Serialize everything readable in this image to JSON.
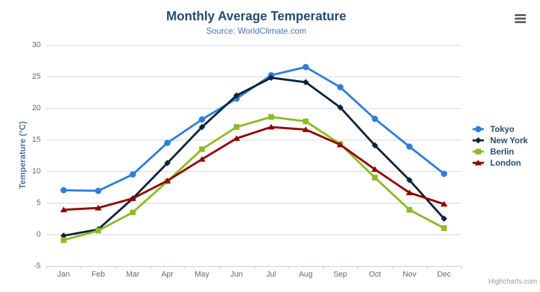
{
  "icons": {
    "context_menu": "hamburger-icon"
  },
  "credits_label": "Highcharts.com",
  "chart_data": {
    "type": "line",
    "title": "Monthly Average Temperature",
    "subtitle": "Source: WorldClimate.com",
    "xlabel": "",
    "ylabel": "Temperature (°C)",
    "categories": [
      "Jan",
      "Feb",
      "Mar",
      "Apr",
      "May",
      "Jun",
      "Jul",
      "Aug",
      "Sep",
      "Oct",
      "Nov",
      "Dec"
    ],
    "yticks": [
      -5,
      0,
      5,
      10,
      15,
      20,
      25,
      30
    ],
    "ylim": [
      -5,
      30
    ],
    "grid": true,
    "legend_position": "right",
    "series": [
      {
        "name": "Tokyo",
        "color": "#2f7ed8",
        "marker": "circle",
        "values": [
          7.0,
          6.9,
          9.5,
          14.5,
          18.2,
          21.5,
          25.2,
          26.5,
          23.3,
          18.3,
          13.9,
          9.6
        ]
      },
      {
        "name": "New York",
        "color": "#0d233a",
        "marker": "diamond",
        "values": [
          -0.2,
          0.8,
          5.7,
          11.3,
          17.0,
          22.0,
          24.8,
          24.1,
          20.1,
          14.1,
          8.6,
          2.5
        ]
      },
      {
        "name": "Berlin",
        "color": "#8bbc21",
        "marker": "square",
        "values": [
          -0.9,
          0.6,
          3.5,
          8.4,
          13.5,
          17.0,
          18.6,
          17.9,
          14.3,
          9.0,
          3.9,
          1.0
        ]
      },
      {
        "name": "London",
        "color": "#910000",
        "marker": "triangle",
        "values": [
          3.9,
          4.2,
          5.7,
          8.5,
          11.9,
          15.2,
          17.0,
          16.6,
          14.2,
          10.3,
          6.6,
          4.8
        ]
      }
    ],
    "colors": {
      "gridline": "#d8d8d8",
      "axis_line": "#c0d0e0",
      "tick_label": "#666666",
      "title": "#274b6d",
      "subtitle": "#4d759e"
    }
  }
}
